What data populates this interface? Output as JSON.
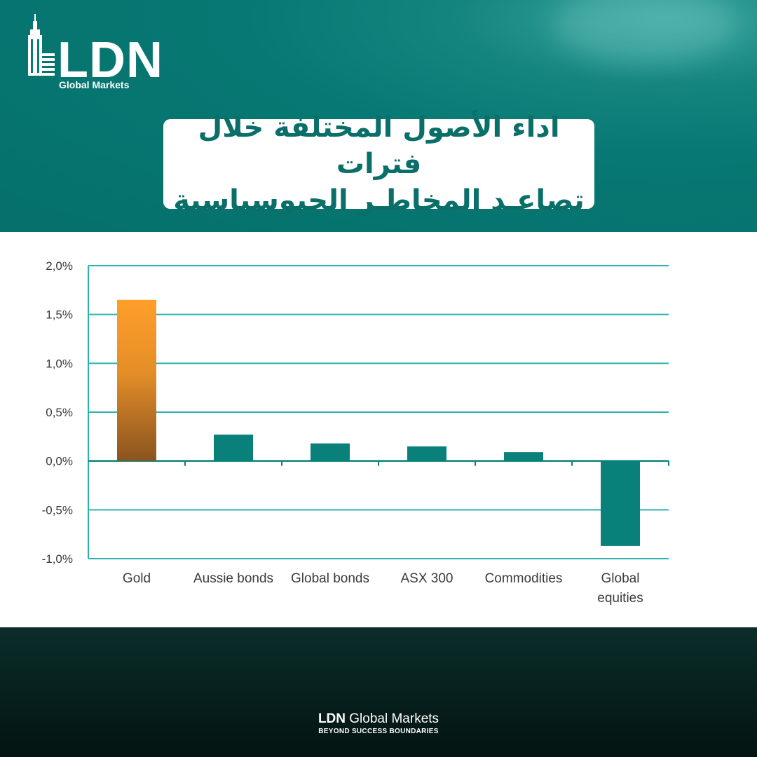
{
  "brand": {
    "logo_letters": "LDN",
    "logo_sub": "Global Markets",
    "footer_brand_bold": "LDN",
    "footer_brand_rest": " Global Markets",
    "footer_tagline": "BEYOND SUCCESS BOUNDARIES"
  },
  "headline": {
    "line1": "اداء الأصول المختلفة خلال فترات",
    "line2": "تصاعـد المخاطـر الچيوسياسية"
  },
  "colors": {
    "teal": "#0a7d79",
    "gold_top": "#ff9e2a",
    "gold_bottom": "#8a5420",
    "grid": "#2bb3b0",
    "bar": "#0a807b"
  },
  "chart_data": {
    "type": "bar",
    "categories": [
      "Gold",
      "Aussie bonds",
      "Global bonds",
      "ASX 300",
      "Commodities",
      "Global equities"
    ],
    "category_lines": [
      [
        "Gold"
      ],
      [
        "Aussie bonds"
      ],
      [
        "Global bonds"
      ],
      [
        "ASX 300"
      ],
      [
        "Commodities"
      ],
      [
        "Global",
        "equities"
      ]
    ],
    "values": [
      1.65,
      0.27,
      0.18,
      0.15,
      0.09,
      -0.87
    ],
    "ylim": [
      -1.0,
      2.0
    ],
    "yticks": [
      2.0,
      1.5,
      1.0,
      0.5,
      0.0,
      -0.5,
      -1.0
    ],
    "ytick_labels": [
      "2,0%",
      "1,5%",
      "1,0%",
      "0,5%",
      "0,0%",
      "-0,5%",
      "-1,0%"
    ],
    "grid": true,
    "highlight_category": "Gold"
  }
}
